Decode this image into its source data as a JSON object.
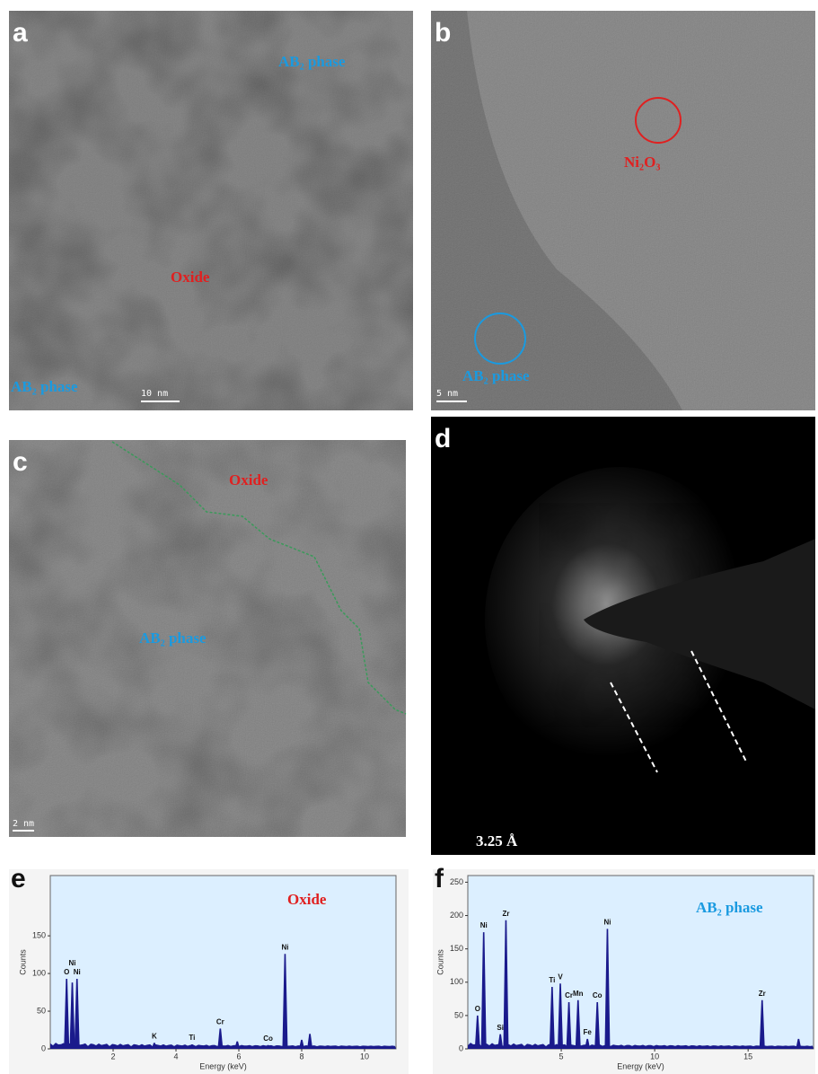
{
  "panels": [
    {
      "letter": "a",
      "labels": [
        "AB₂ phase",
        "Oxide",
        "AB₂ phase"
      ],
      "scale_bar": "10 nm"
    },
    {
      "letter": "b",
      "labels": [
        "Ni₂O₃",
        "AB₂ phase"
      ],
      "scale_bar": "5 nm"
    },
    {
      "letter": "c",
      "labels": [
        "Oxide",
        "AB₂ phase"
      ],
      "scale_bar": "2 nm"
    },
    {
      "letter": "d",
      "labels": [
        "3.25 Å"
      ]
    }
  ],
  "spectra": [
    {
      "letter": "e",
      "title": "Oxide",
      "y_label": "Counts",
      "x_label": "Energy (keV)",
      "xlim": [
        0,
        11
      ],
      "ylim": [
        0,
        230
      ],
      "xticks": [
        2,
        4,
        6,
        8,
        10
      ],
      "yticks": [
        0,
        50,
        100,
        150
      ],
      "peaks": {
        "energy": [
          0.52,
          0.7,
          0.85,
          3.31,
          4.51,
          5.41,
          5.95,
          6.93,
          7.47,
          8.0,
          8.26
        ],
        "counts": [
          93,
          88,
          93,
          8,
          6,
          27,
          10,
          5,
          126,
          12,
          20
        ],
        "element": [
          "O",
          "Ni",
          "Ni",
          "K",
          "Ti",
          "Cr",
          null,
          "Co",
          "Ni",
          null,
          null
        ]
      }
    },
    {
      "letter": "f",
      "title": "AB₂ phase",
      "y_label": "Counts",
      "x_label": "Energy (keV)",
      "xlim": [
        0,
        18.5
      ],
      "ylim": [
        0,
        260
      ],
      "xticks": [
        5,
        10,
        15
      ],
      "yticks": [
        0,
        50,
        100,
        150,
        200,
        250
      ],
      "peaks": {
        "energy": [
          0.52,
          0.85,
          1.74,
          2.04,
          4.51,
          4.95,
          5.41,
          5.9,
          6.4,
          6.93,
          7.47,
          15.75,
          17.7
        ],
        "counts": [
          50,
          175,
          22,
          193,
          93,
          98,
          70,
          73,
          15,
          70,
          180,
          73,
          15
        ],
        "element": [
          "O",
          "Ni",
          "Si",
          "Zr",
          "Ti",
          "V",
          "Cr",
          "Mn",
          "Fe",
          "Co",
          "Ni",
          "Zr",
          null
        ]
      }
    }
  ]
}
